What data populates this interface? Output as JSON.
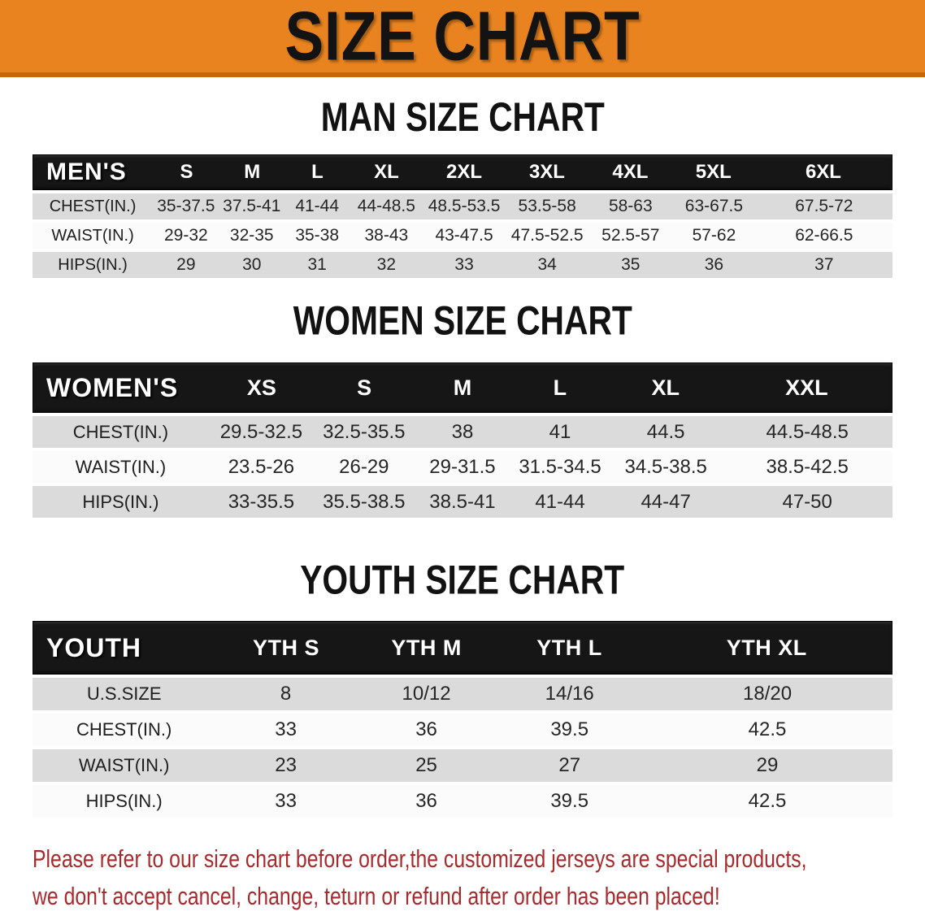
{
  "banner": {
    "title": "SIZE CHART"
  },
  "sections": [
    {
      "id": "men",
      "heading": "MAN SIZE CHART",
      "table_label": "MEN'S",
      "columns": [
        "S",
        "M",
        "L",
        "XL",
        "2XL",
        "3XL",
        "4XL",
        "5XL",
        "6XL"
      ],
      "rows": [
        {
          "label": "CHEST(IN.)",
          "values": [
            "35-37.5",
            "37.5-41",
            "41-44",
            "44-48.5",
            "48.5-53.5",
            "53.5-58",
            "58-63",
            "63-67.5",
            "67.5-72"
          ]
        },
        {
          "label": "WAIST(IN.)",
          "values": [
            "29-32",
            "32-35",
            "35-38",
            "38-43",
            "43-47.5",
            "47.5-52.5",
            "52.5-57",
            "57-62",
            "62-66.5"
          ]
        },
        {
          "label": "HIPS(IN.)",
          "values": [
            "29",
            "30",
            "31",
            "32",
            "33",
            "34",
            "35",
            "36",
            "37"
          ]
        }
      ]
    },
    {
      "id": "women",
      "heading": "WOMEN SIZE CHART",
      "table_label": "WOMEN'S",
      "columns": [
        "XS",
        "S",
        "M",
        "L",
        "XL",
        "XXL"
      ],
      "rows": [
        {
          "label": "CHEST(IN.)",
          "values": [
            "29.5-32.5",
            "32.5-35.5",
            "38",
            "41",
            "44.5",
            "44.5-48.5"
          ]
        },
        {
          "label": "WAIST(IN.)",
          "values": [
            "23.5-26",
            "26-29",
            "29-31.5",
            "31.5-34.5",
            "34.5-38.5",
            "38.5-42.5"
          ]
        },
        {
          "label": "HIPS(IN.)",
          "values": [
            "33-35.5",
            "35.5-38.5",
            "38.5-41",
            "41-44",
            "44-47",
            "47-50"
          ]
        }
      ]
    },
    {
      "id": "youth",
      "heading": "YOUTH SIZE CHART",
      "table_label": "YOUTH",
      "columns": [
        "YTH S",
        "YTH M",
        "YTH L",
        "YTH XL"
      ],
      "rows": [
        {
          "label": "U.S.SIZE",
          "values": [
            "8",
            "10/12",
            "14/16",
            "18/20"
          ]
        },
        {
          "label": "CHEST(IN.)",
          "values": [
            "33",
            "36",
            "39.5",
            "42.5"
          ]
        },
        {
          "label": "WAIST(IN.)",
          "values": [
            "23",
            "25",
            "27",
            "29"
          ]
        },
        {
          "label": "HIPS(IN.)",
          "values": [
            "33",
            "36",
            "39.5",
            "42.5"
          ]
        }
      ]
    }
  ],
  "notice": {
    "lines": [
      "Please refer to our size chart before order,the customized jerseys are special products,",
      "we don't accept cancel, change, teturn or refund after order has been placed!"
    ]
  },
  "colors": {
    "banner_bg": "#e8831f",
    "banner_edge": "#c1690f",
    "table_header_bg": "#161616",
    "row_gray": "#dbdbdb",
    "row_white": "#fbfbfb",
    "notice_red": "#a82a2c"
  }
}
